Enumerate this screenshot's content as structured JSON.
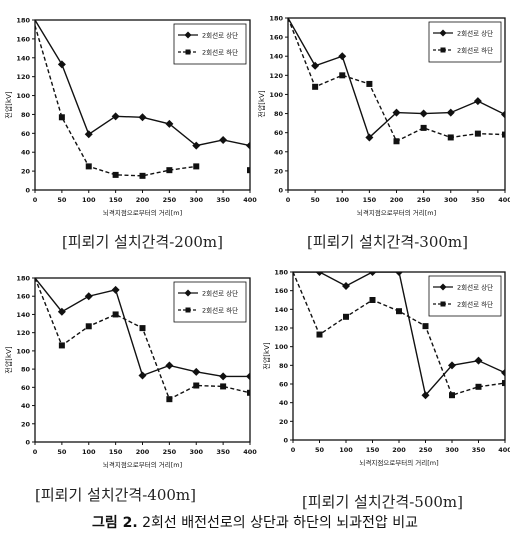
{
  "figure_caption": {
    "label": "그림 2.",
    "text": "2회선 배전선로의 상단과 하단의 뇌과전압 비교"
  },
  "chart_data": [
    {
      "type": "line",
      "caption": "[피뢰기 설치간격-200m]",
      "xlabel": "뇌격지점으로부터의 거리[m]",
      "ylabel": "전압[kV]",
      "x": [
        0,
        50,
        100,
        150,
        200,
        250,
        300,
        350,
        400
      ],
      "xlim": [
        0,
        400
      ],
      "ylim": [
        0,
        180
      ],
      "yticks": [
        0,
        20,
        40,
        60,
        80,
        100,
        120,
        140,
        160,
        180
      ],
      "legend_position": "top-right",
      "series": [
        {
          "name": "2회선로 상단",
          "marker": "diamond",
          "line": "solid",
          "color": "#111111",
          "values": [
            180,
            133,
            59,
            78,
            77,
            70,
            47,
            53,
            47
          ]
        },
        {
          "name": "2회선로 하단",
          "marker": "square",
          "line": "dashed",
          "color": "#111111",
          "values": [
            174,
            77,
            25,
            16,
            15,
            21,
            25,
            null,
            21
          ]
        }
      ]
    },
    {
      "type": "line",
      "caption": "[피뢰기 설치간격-300m]",
      "xlabel": "뇌격지점으로부터의 거리[m]",
      "ylabel": "전압[kV]",
      "x": [
        0,
        50,
        100,
        150,
        200,
        250,
        300,
        350,
        400
      ],
      "xlim": [
        0,
        400
      ],
      "ylim": [
        0,
        180
      ],
      "yticks": [
        0,
        20,
        40,
        60,
        80,
        100,
        120,
        140,
        160,
        180
      ],
      "legend_position": "top-right",
      "series": [
        {
          "name": "2회선로 상단",
          "marker": "diamond",
          "line": "solid",
          "color": "#111111",
          "values": [
            180,
            130,
            140,
            55,
            81,
            80,
            81,
            93,
            79
          ]
        },
        {
          "name": "2회선로 하단",
          "marker": "square",
          "line": "dashed",
          "color": "#111111",
          "values": [
            180,
            108,
            120,
            111,
            51,
            65,
            55,
            59,
            58
          ]
        }
      ]
    },
    {
      "type": "line",
      "caption": "[피뢰기 설치간격-400m]",
      "xlabel": "뇌격지점으로부터의 거리[m]",
      "ylabel": "전압[kV]",
      "x": [
        0,
        50,
        100,
        150,
        200,
        250,
        300,
        350,
        400
      ],
      "xlim": [
        0,
        400
      ],
      "ylim": [
        0,
        180
      ],
      "yticks": [
        0,
        20,
        40,
        60,
        80,
        100,
        120,
        140,
        160,
        180
      ],
      "legend_position": "top-right",
      "series": [
        {
          "name": "2회선로 상단",
          "marker": "diamond",
          "line": "solid",
          "color": "#111111",
          "values": [
            180,
            143,
            160,
            167,
            73,
            84,
            77,
            72,
            72
          ]
        },
        {
          "name": "2회선로 하단",
          "marker": "square",
          "line": "dashed",
          "color": "#111111",
          "values": [
            180,
            106,
            127,
            140,
            125,
            47,
            62,
            61,
            54
          ]
        }
      ]
    },
    {
      "type": "line",
      "caption": "[피뢰기 설치간격-500m]",
      "xlabel": "뇌격지점으로부터의 거리[m]",
      "ylabel": "전압[kV]",
      "x": [
        0,
        50,
        100,
        150,
        200,
        250,
        300,
        350,
        400
      ],
      "xlim": [
        0,
        400
      ],
      "ylim": [
        0,
        180
      ],
      "yticks": [
        0,
        20,
        40,
        60,
        80,
        100,
        120,
        140,
        160,
        180
      ],
      "legend_position": "top-right",
      "series": [
        {
          "name": "2회선로 상단",
          "marker": "diamond",
          "line": "solid",
          "color": "#111111",
          "values": [
            180,
            180,
            165,
            180,
            180,
            48,
            80,
            85,
            72
          ]
        },
        {
          "name": "2회선로 하단",
          "marker": "square",
          "line": "dashed",
          "color": "#111111",
          "values": [
            180,
            113,
            132,
            150,
            138,
            122,
            48,
            57,
            61
          ]
        }
      ]
    }
  ]
}
